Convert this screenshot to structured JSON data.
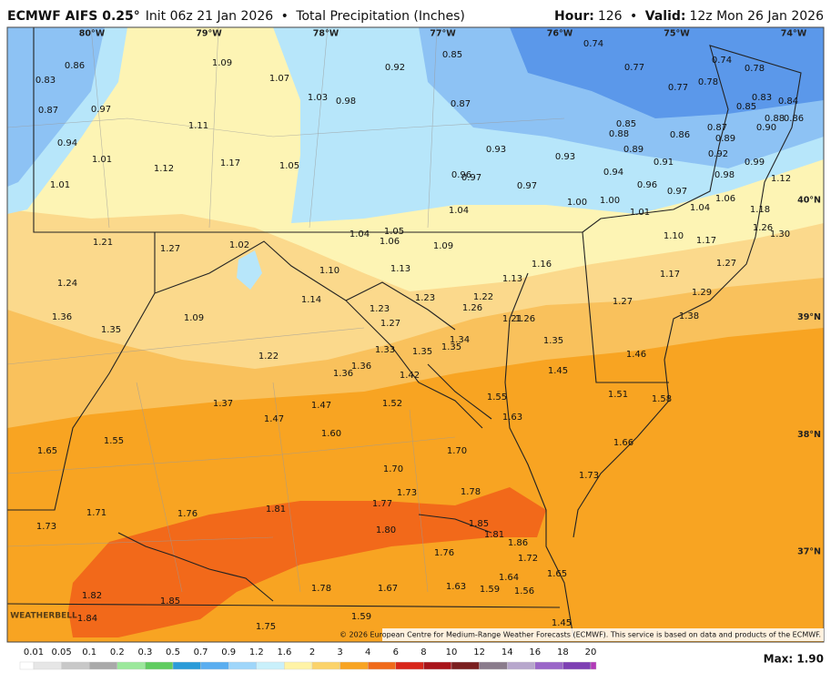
{
  "header": {
    "title": "ECMWF AIFS 0.25°",
    "init": "Init 06z 21 Jan 2026",
    "product": "Total Precipitation (Inches)",
    "hour_label": "Hour:",
    "hour": "126",
    "valid_label": "Valid:",
    "valid": "12z Mon 26 Jan 2026"
  },
  "map": {
    "longitudes": [
      "80°W",
      "79°W",
      "78°W",
      "77°W",
      "76°W",
      "75°W",
      "74°W"
    ],
    "latitudes": [
      "40°N",
      "39°N",
      "38°N",
      "37°N"
    ],
    "labels": [
      "0.83",
      "0.86",
      "0.87",
      "0.97",
      "0.94",
      "1.01",
      "1.01",
      "1.09",
      "1.07",
      "1.03",
      "0.98",
      "1.11",
      "1.12",
      "1.17",
      "1.05",
      "0.92",
      "0.85",
      "0.87",
      "0.74",
      "0.77",
      "0.74",
      "0.78",
      "0.77",
      "0.78",
      "0.83",
      "0.85",
      "0.84",
      "0.88",
      "0.86",
      "0.90",
      "0.87",
      "0.89",
      "0.86",
      "0.85",
      "0.88",
      "0.89",
      "0.91",
      "0.92",
      "0.99",
      "0.98",
      "0.93",
      "0.93",
      "0.96",
      "0.97",
      "0.97",
      "0.94",
      "0.96",
      "0.97",
      "1.00",
      "1.00",
      "1.01",
      "1.04",
      "1.06",
      "1.12",
      "1.18",
      "1.26",
      "1.30",
      "1.04",
      "1.04",
      "1.05",
      "1.06",
      "1.09",
      "1.21",
      "1.27",
      "1.02",
      "1.10",
      "1.13",
      "1.16",
      "1.13",
      "1.10",
      "1.17",
      "1.27",
      "1.17",
      "1.24",
      "1.29",
      "1.38",
      "1.27",
      "1.14",
      "1.23",
      "1.22",
      "1.26",
      "1.23",
      "1.36",
      "1.35",
      "1.09",
      "1.27",
      "1.21",
      "1.26",
      "1.35",
      "1.34",
      "1.35",
      "1.35",
      "1.33",
      "1.46",
      "1.22",
      "1.36",
      "1.36",
      "1.42",
      "1.45",
      "1.51",
      "1.55",
      "1.37",
      "1.47",
      "1.52",
      "1.58",
      "1.47",
      "1.63",
      "1.60",
      "1.65",
      "1.55",
      "1.66",
      "1.70",
      "1.70",
      "1.73",
      "1.73",
      "1.78",
      "1.77",
      "1.81",
      "1.76",
      "1.71",
      "1.73",
      "1.85",
      "1.80",
      "1.81",
      "1.86",
      "1.76",
      "1.72",
      "1.65",
      "1.64",
      "1.78",
      "1.67",
      "1.63",
      "1.59",
      "1.56",
      "1.82",
      "1.85",
      "1.84",
      "1.75",
      "1.59",
      "1.45"
    ],
    "watermark": "WEATHERBELL",
    "copyright": "© 2026 European Centre for Medium-Range Weather Forecasts (ECMWF). This service is based on data and products of the ECMWF."
  },
  "colorbar": {
    "labels": [
      "0.01",
      "0.05",
      "0.1",
      "0.2",
      "0.3",
      "0.5",
      "0.7",
      "0.9",
      "1.2",
      "1.6",
      "2",
      "3",
      "4",
      "6",
      "8",
      "10",
      "12",
      "14",
      "16",
      "18",
      "20"
    ],
    "max": "Max: 1.90"
  }
}
